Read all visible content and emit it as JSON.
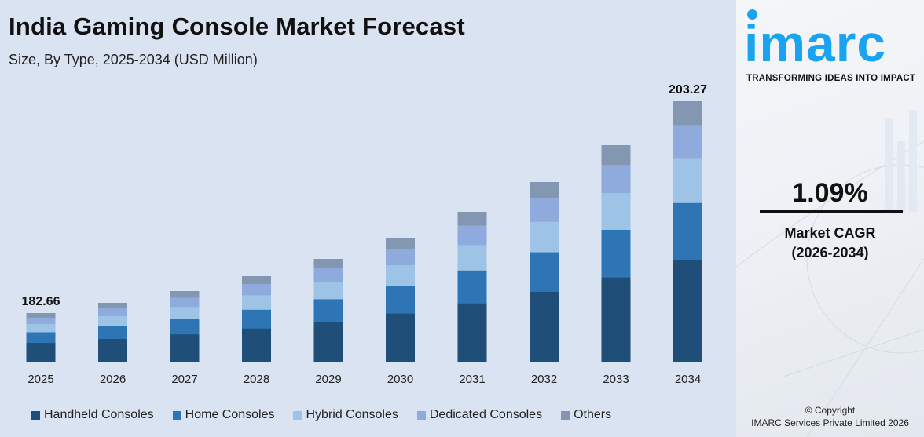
{
  "header": {
    "title": "India Gaming Console Market Forecast",
    "subtitle": "Size, By Type, 2025-2034 (USD Million)"
  },
  "chart_data": {
    "type": "bar",
    "stacked": true,
    "categories": [
      "2025",
      "2026",
      "2027",
      "2028",
      "2029",
      "2030",
      "2031",
      "2032",
      "2033",
      "2034"
    ],
    "series": [
      {
        "name": "Handheld Consoles",
        "color": "#1f4e79"
      },
      {
        "name": "Home Consoles",
        "color": "#2e75b6"
      },
      {
        "name": "Hybrid Consoles",
        "color": "#9dc3e6"
      },
      {
        "name": "Dedicated Consoles",
        "color": "#8faadc"
      },
      {
        "name": "Others",
        "color": "#8497b0"
      }
    ],
    "segment_shares": [
      0.39,
      0.22,
      0.17,
      0.13,
      0.09
    ],
    "totals": [
      182.66,
      null,
      null,
      null,
      null,
      null,
      null,
      null,
      null,
      203.27
    ],
    "data_labels": {
      "2025": "182.66",
      "2034": "203.27"
    },
    "xlabel": "",
    "ylabel": "",
    "grid": false,
    "legend_position": "bottom"
  },
  "sidebar": {
    "logo_text": "imarc",
    "brand_color": "#1aa3f0",
    "tagline": "TRANSFORMING IDEAS INTO IMPACT",
    "cagr_value": "1.09%",
    "cagr_label_line1": "Market CAGR",
    "cagr_label_line2": "(2026-2034)",
    "copyright_line1": "© Copyright",
    "copyright_line2": "IMARC Services Private Limited 2026"
  }
}
